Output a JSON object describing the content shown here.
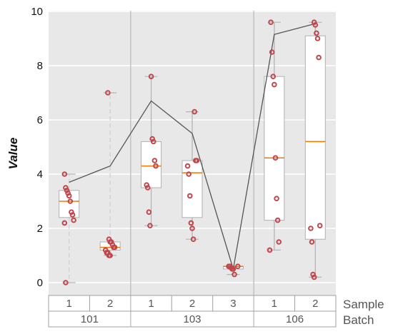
{
  "chart_data": {
    "type": "box",
    "ylabel": "Value",
    "ylim": [
      -0.5,
      10
    ],
    "yticks": [
      0,
      2,
      4,
      6,
      8,
      10
    ],
    "grid": true,
    "row_labels": {
      "sample": "Sample",
      "batch": "Batch"
    },
    "batches": [
      {
        "label": "101",
        "samples": [
          "1",
          "2"
        ]
      },
      {
        "label": "103",
        "samples": [
          "1",
          "2",
          "3"
        ]
      },
      {
        "label": "106",
        "samples": [
          "1",
          "2"
        ]
      }
    ],
    "groups": [
      {
        "batch": "101",
        "sample": "1",
        "whisker_low": 0.0,
        "q1": 2.4,
        "median": 3.0,
        "q3": 3.4,
        "whisker_high": 4.0,
        "mean": 3.7,
        "points": [
          4.0,
          3.5,
          3.4,
          3.3,
          3.2,
          3.0,
          2.6,
          2.5,
          2.3,
          2.2,
          0.0
        ]
      },
      {
        "batch": "101",
        "sample": "2",
        "whisker_low": 1.0,
        "q1": 1.2,
        "median": 1.3,
        "q3": 1.5,
        "whisker_high": 7.0,
        "mean": 4.3,
        "points": [
          7.0,
          1.6,
          1.5,
          1.5,
          1.4,
          1.3,
          1.3,
          1.2,
          1.1,
          1.1,
          1.0,
          1.0
        ]
      },
      {
        "batch": "103",
        "sample": "1",
        "whisker_low": 2.1,
        "q1": 3.5,
        "median": 4.3,
        "q3": 5.2,
        "whisker_high": 7.6,
        "mean": 6.7,
        "points": [
          7.6,
          5.3,
          5.2,
          4.5,
          4.3,
          3.6,
          3.5,
          2.6,
          2.1
        ]
      },
      {
        "batch": "103",
        "sample": "2",
        "whisker_low": 1.6,
        "q1": 2.4,
        "median": 4.05,
        "q3": 4.5,
        "whisker_high": 6.3,
        "mean": 5.5,
        "points": [
          6.3,
          4.5,
          4.5,
          4.3,
          4.0,
          3.2,
          2.2,
          2.0,
          1.6
        ]
      },
      {
        "batch": "103",
        "sample": "3",
        "whisker_low": 0.3,
        "q1": 0.5,
        "median": 0.6,
        "q3": 0.6,
        "whisker_high": 0.6,
        "mean": 0.5,
        "points": [
          0.6,
          0.6,
          0.6,
          0.55,
          0.5,
          0.5,
          0.3
        ]
      },
      {
        "batch": "106",
        "sample": "1",
        "whisker_low": 1.2,
        "q1": 2.3,
        "median": 4.6,
        "q3": 7.6,
        "whisker_high": 9.6,
        "mean": 9.15,
        "points": [
          9.6,
          8.5,
          7.6,
          7.3,
          4.6,
          3.1,
          2.3,
          1.5,
          1.2
        ]
      },
      {
        "batch": "106",
        "sample": "2",
        "whisker_low": 0.2,
        "q1": 1.6,
        "median": 5.2,
        "q3": 9.1,
        "whisker_high": 9.6,
        "mean": 9.55,
        "points": [
          9.6,
          9.5,
          9.2,
          9.0,
          8.3,
          2.1,
          2.0,
          1.5,
          0.3,
          0.2
        ]
      }
    ],
    "colors": {
      "panel_bg": "#e8e8e8",
      "grid": "#ffffff",
      "box_fill": "#ffffff",
      "box_edge": "#b0b0b0",
      "median": "#f07800",
      "whisker": "#b4b4b4",
      "whisker_dashed": "#d0d0d0",
      "points": "#c0464b",
      "mean_line": "#555555",
      "separator": "#b8b8b8",
      "table_border": "#a0a0a0"
    }
  }
}
